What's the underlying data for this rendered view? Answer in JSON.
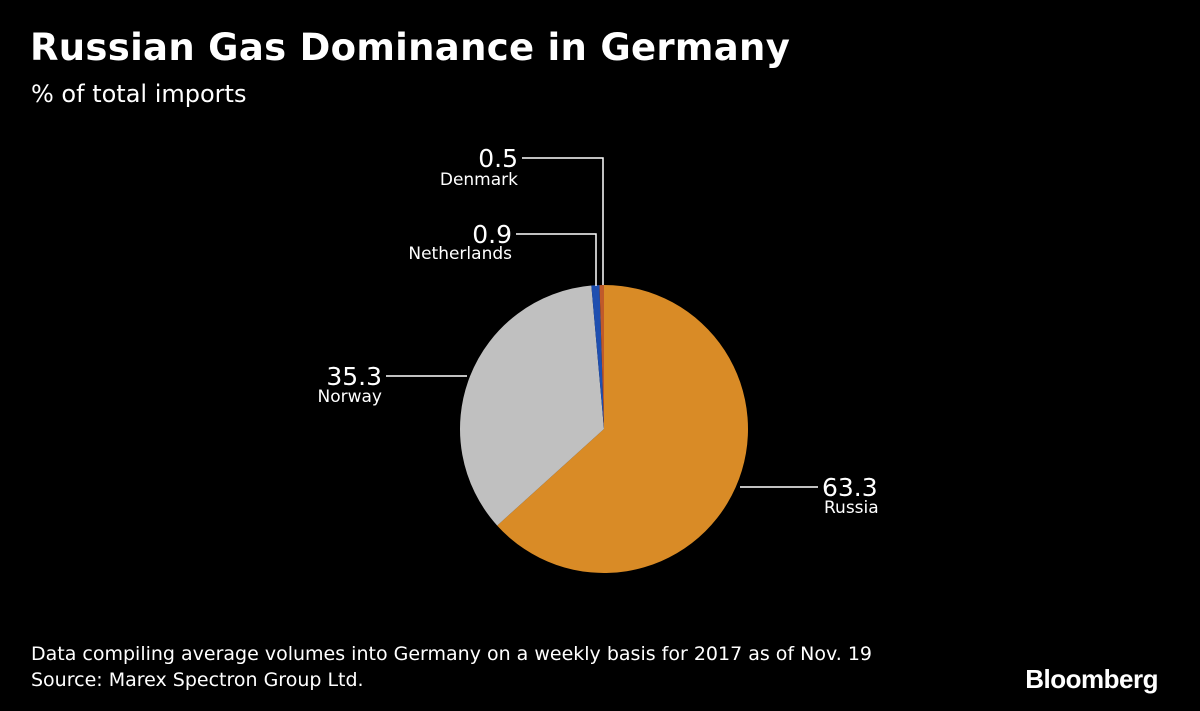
{
  "chart_data": {
    "type": "pie",
    "title": "Russian Gas Dominance in Germany",
    "subtitle": "% of total imports",
    "slices": [
      {
        "label": "Russia",
        "value": 63.3,
        "display": "63.3",
        "color": "#d98b26"
      },
      {
        "label": "Norway",
        "value": 35.3,
        "display": "35.3",
        "color": "#c0c0c0"
      },
      {
        "label": "Netherlands",
        "value": 0.9,
        "display": "0.9",
        "color": "#1f4fb0"
      },
      {
        "label": "Denmark",
        "value": 0.5,
        "display": "0.5",
        "color": "#c05a2a"
      }
    ],
    "start": "12 o'clock",
    "direction": "clockwise"
  },
  "footnote": {
    "line1": "Data compiling average volumes into Germany on a weekly basis for 2017 as of Nov. 19",
    "line2": "Source: Marex Spectron Group Ltd."
  },
  "brand": "Bloomberg",
  "colors": {
    "background": "#000000",
    "text": "#ffffff",
    "leader": "#ffffff"
  }
}
